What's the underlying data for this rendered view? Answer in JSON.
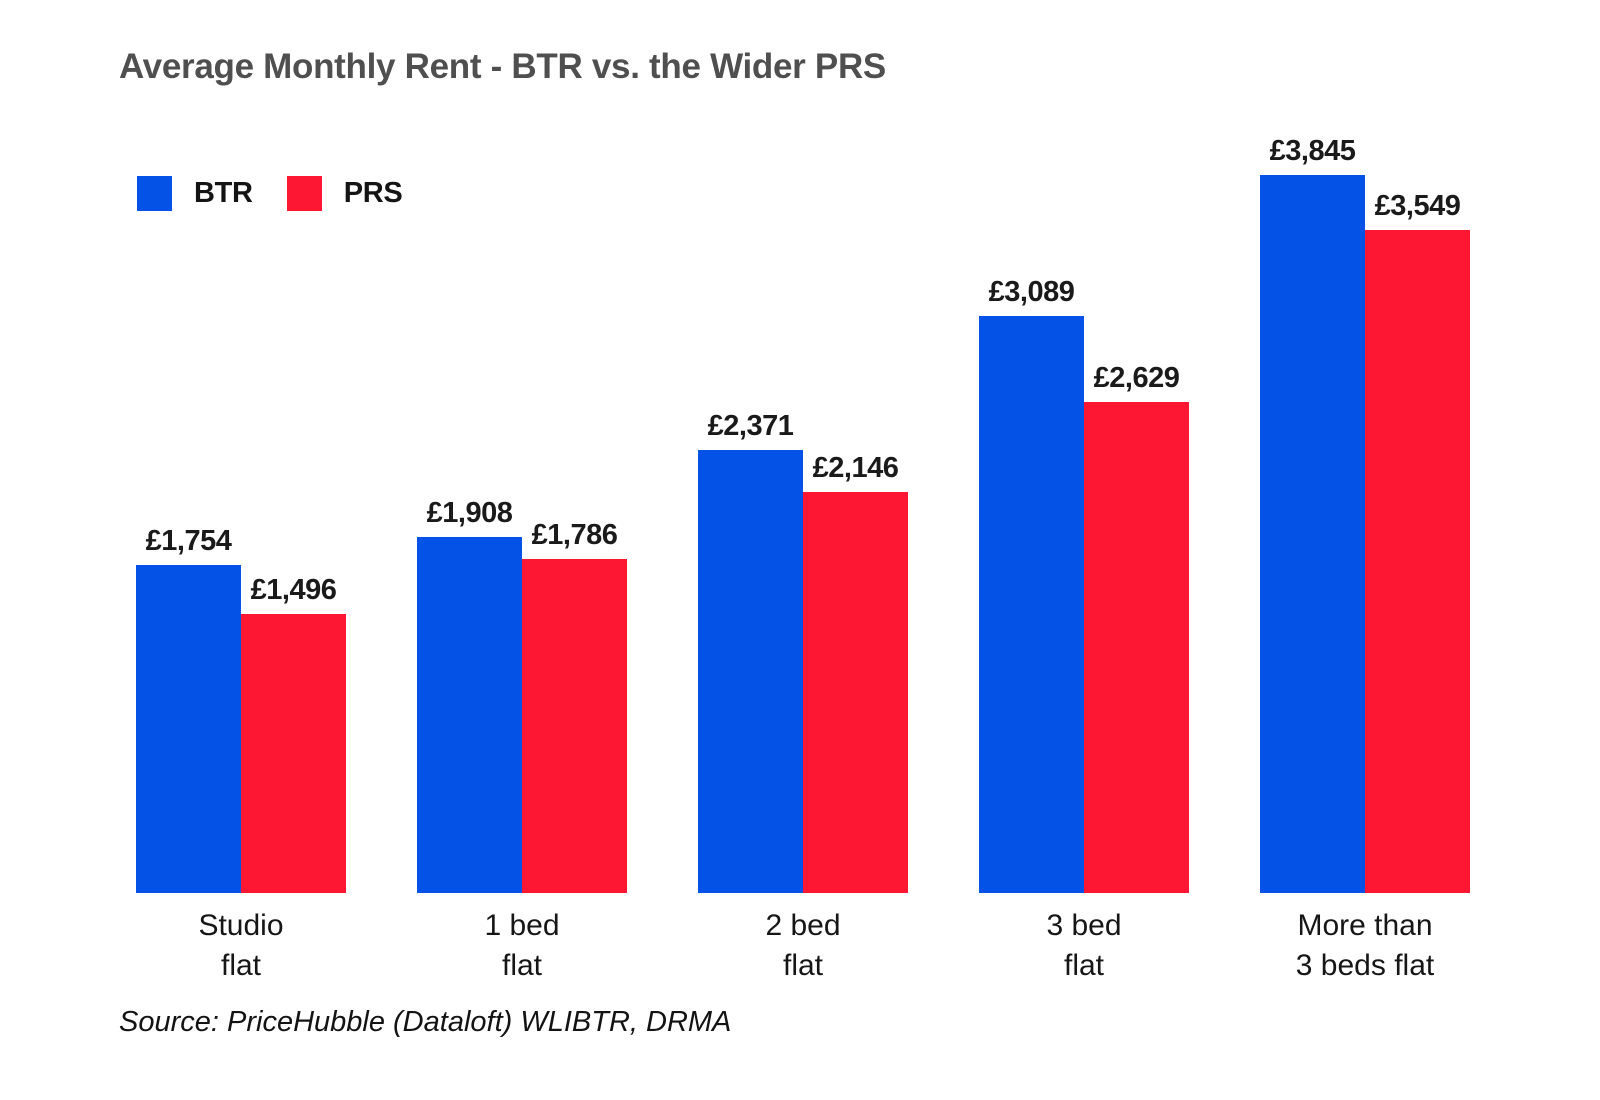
{
  "title": "Average Monthly Rent - BTR vs. the Wider PRS",
  "legend": [
    {
      "label": "BTR",
      "color": "#0452e6"
    },
    {
      "label": "PRS",
      "color": "#fe1733"
    }
  ],
  "source": "Source: PriceHubble (Dataloft) WLIBTR, DRMA",
  "colors": {
    "btr_blue": "#0452e6",
    "prs_red": "#fe1733",
    "title_gray": "#4f4f4f",
    "label_black": "#1a1a1a"
  },
  "chart_data": {
    "type": "bar",
    "title": "Average Monthly Rent - BTR vs. the Wider PRS",
    "categories": [
      "Studio flat",
      "1 bed flat",
      "2 bed flat",
      "3 bed flat",
      "More than 3 beds flat"
    ],
    "category_lines": [
      [
        "Studio",
        "flat"
      ],
      [
        "1 bed",
        "flat"
      ],
      [
        "2 bed",
        "flat"
      ],
      [
        "3 bed",
        "flat"
      ],
      [
        "More than",
        "3 beds flat"
      ]
    ],
    "series": [
      {
        "name": "BTR",
        "color": "#0452e6",
        "values": [
          1754,
          1908,
          2371,
          3089,
          3845
        ],
        "labels": [
          "£1,754",
          "£1,908",
          "£2,371",
          "£3,089",
          "£3,845"
        ]
      },
      {
        "name": "PRS",
        "color": "#fe1733",
        "values": [
          1496,
          1786,
          2146,
          2629,
          3549
        ],
        "labels": [
          "£1,496",
          "£1,786",
          "£2,146",
          "£2,629",
          "£3,549"
        ]
      }
    ],
    "value_prefix": "£",
    "xlabel": "",
    "ylabel": "",
    "ylim": [
      0,
      3845
    ],
    "grid": false,
    "y_axis_shown": false,
    "legend_position": "top-left"
  }
}
